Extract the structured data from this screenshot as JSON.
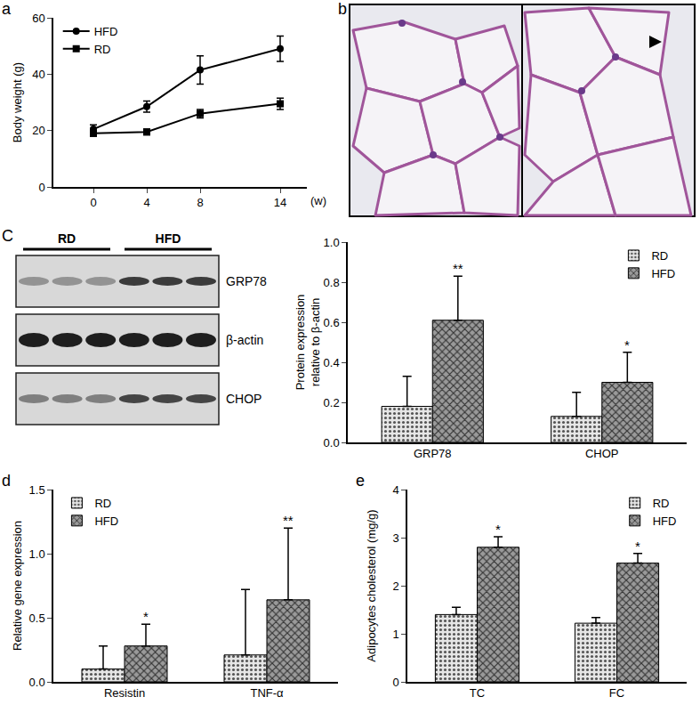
{
  "chart_data": [
    {
      "panel": "a",
      "type": "line",
      "x": [
        0,
        4,
        8,
        14
      ],
      "xlim": [
        -3,
        16
      ],
      "xticks": [
        0,
        4,
        8,
        14
      ],
      "x_label": "(w)",
      "y_label": "Body weight (g)",
      "ylim": [
        0,
        60
      ],
      "yticks": [
        0,
        20,
        40,
        60
      ],
      "legend": "top left",
      "series": [
        {
          "name": "HFD",
          "color": "#000000",
          "marker": "circle",
          "values": [
            20.5,
            28.5,
            41.5,
            49
          ],
          "errors": [
            1.5,
            2,
            5,
            4.5
          ]
        },
        {
          "name": "RD",
          "color": "#000000",
          "marker": "square",
          "values": [
            19,
            19.5,
            26,
            29.5
          ],
          "errors": [
            1,
            1,
            1.5,
            2
          ]
        }
      ]
    },
    {
      "type": "bar",
      "categories": [
        "GRP78",
        "CHOP"
      ],
      "y_label": "Protein expression\nrelative to β-actin",
      "ylim": [
        0,
        1.0
      ],
      "yticks": [
        {
          "value": 0,
          "label": "0.0"
        },
        {
          "value": 0.2,
          "label": "0.2"
        },
        {
          "value": 0.4,
          "label": "0.4"
        },
        {
          "value": 0.6,
          "label": "0.6"
        },
        {
          "value": 0.8,
          "label": "0.8"
        },
        {
          "value": 1.0,
          "label": "1.0"
        }
      ],
      "legend": "top right",
      "series": [
        {
          "name": "RD",
          "color": "#e6e6e6",
          "values": [
            0.18,
            0.13
          ],
          "errors": [
            0.15,
            0.12
          ]
        },
        {
          "name": "HFD",
          "color": "#9a9a9a",
          "values": [
            0.61,
            0.3
          ],
          "errors": [
            0.22,
            0.15
          ]
        }
      ],
      "annotations": [
        {
          "text": "**",
          "category": "GRP78",
          "series": "HFD"
        },
        {
          "text": "*",
          "category": "CHOP",
          "series": "HFD"
        }
      ]
    },
    {
      "panel": "d",
      "type": "bar",
      "categories": [
        "Resistin",
        "TNF-α"
      ],
      "y_label": "Relative gene expression",
      "ylim": [
        0,
        1.5
      ],
      "yticks": [
        {
          "value": 0,
          "label": "0.0"
        },
        {
          "value": 0.5,
          "label": "0.5"
        },
        {
          "value": 1.0,
          "label": "1.0"
        },
        {
          "value": 1.5,
          "label": "1.5"
        }
      ],
      "legend": "top left",
      "series": [
        {
          "name": "RD",
          "color": "#e6e6e6",
          "values": [
            0.1,
            0.21
          ],
          "errors": [
            0.18,
            0.51
          ]
        },
        {
          "name": "HFD",
          "color": "#9a9a9a",
          "values": [
            0.28,
            0.64
          ],
          "errors": [
            0.17,
            0.56
          ]
        }
      ],
      "annotations": [
        {
          "text": "*",
          "category": "Resistin",
          "series": "HFD"
        },
        {
          "text": "**",
          "category": "TNF-α",
          "series": "HFD"
        }
      ]
    },
    {
      "panel": "e",
      "type": "bar",
      "categories": [
        "TC",
        "FC"
      ],
      "y_label": "Adipocytes cholesterol (mg/g)",
      "ylim": [
        0,
        4
      ],
      "yticks": [
        0,
        1,
        2,
        3,
        4
      ],
      "legend": "top right",
      "series": [
        {
          "name": "RD",
          "color": "#e6e6e6",
          "values": [
            1.4,
            1.22
          ],
          "errors": [
            0.15,
            0.12
          ]
        },
        {
          "name": "HFD",
          "color": "#9a9a9a",
          "values": [
            2.8,
            2.47
          ],
          "errors": [
            0.22,
            0.2
          ]
        }
      ],
      "annotations": [
        {
          "text": "*",
          "category": "TC",
          "series": "HFD"
        },
        {
          "text": "*",
          "category": "FC",
          "series": "HFD"
        }
      ]
    }
  ],
  "image_panel": {
    "panel": "b"
  },
  "blot": {
    "panel": "C",
    "groups": [
      "RD",
      "HFD"
    ],
    "rows": [
      "GRP78",
      "β-actin",
      "CHOP"
    ]
  }
}
